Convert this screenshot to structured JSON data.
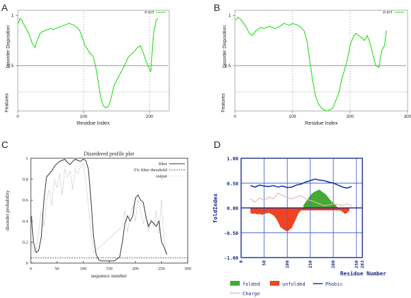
{
  "panels": {
    "A": {
      "letter": "A",
      "chart_data": {
        "type": "line",
        "legend": "P-FIT",
        "xlabel": "Residue Index",
        "ylabel": "Disorder Disposition",
        "features_label": "Features",
        "xlim": [
          0,
          230
        ],
        "ylim": [
          0.05,
          1.05
        ],
        "xticks": [
          "0",
          "100",
          "200"
        ],
        "yticks": [
          "1",
          "0.5"
        ],
        "ytick_values": [
          1,
          0.5
        ],
        "threshold": 0.5,
        "vlines": [
          100,
          200
        ],
        "series": [
          {
            "name": "P-FIT",
            "color": "#22dd11",
            "x": [
              1,
              3,
              6,
              10,
              14,
              18,
              22,
              26,
              30,
              34,
              38,
              42,
              46,
              50,
              54,
              58,
              62,
              66,
              70,
              74,
              78,
              82,
              86,
              90,
              94,
              98,
              102,
              106,
              110,
              114,
              118,
              122,
              126,
              130,
              134,
              138,
              142,
              146,
              150,
              154,
              158,
              162,
              166,
              170,
              174,
              178,
              182,
              186,
              190,
              194,
              198,
              202,
              206,
              210,
              213
            ],
            "y": [
              0.92,
              0.97,
              0.95,
              0.9,
              0.85,
              0.8,
              0.72,
              0.68,
              0.76,
              0.82,
              0.84,
              0.85,
              0.86,
              0.87,
              0.86,
              0.87,
              0.88,
              0.89,
              0.9,
              0.91,
              0.92,
              0.91,
              0.9,
              0.88,
              0.85,
              0.78,
              0.7,
              0.66,
              0.62,
              0.6,
              0.5,
              0.35,
              0.18,
              0.1,
              0.08,
              0.1,
              0.18,
              0.3,
              0.35,
              0.4,
              0.45,
              0.5,
              0.56,
              0.6,
              0.62,
              0.65,
              0.68,
              0.7,
              0.64,
              0.56,
              0.5,
              0.44,
              0.8,
              0.95,
              0.97
            ]
          }
        ]
      }
    },
    "B": {
      "letter": "B",
      "chart_data": {
        "type": "line",
        "legend": "P-FIT",
        "xlabel": "Residue Index",
        "ylabel": "Disorder Disposition",
        "features_label": "Features",
        "xlim": [
          0,
          300
        ],
        "ylim": [
          0.05,
          1.05
        ],
        "xticks": [
          "0",
          "100",
          "200",
          "300"
        ],
        "yticks": [
          "1",
          "0.5"
        ],
        "ytick_values": [
          1,
          0.5
        ],
        "threshold": 0.5,
        "vlines": [
          100,
          200
        ],
        "series": [
          {
            "name": "P-FIT",
            "color": "#22dd11",
            "x": [
              1,
              5,
              10,
              15,
              20,
              25,
              30,
              35,
              40,
              45,
              50,
              55,
              60,
              65,
              70,
              75,
              80,
              85,
              90,
              95,
              100,
              105,
              110,
              115,
              120,
              125,
              130,
              135,
              140,
              145,
              150,
              155,
              160,
              165,
              170,
              175,
              180,
              185,
              190,
              195,
              200,
              205,
              210,
              215,
              220,
              225,
              230,
              235,
              240,
              245,
              250,
              255,
              260,
              263
            ],
            "y": [
              0.95,
              0.98,
              0.96,
              0.92,
              0.88,
              0.82,
              0.8,
              0.84,
              0.86,
              0.88,
              0.87,
              0.88,
              0.89,
              0.88,
              0.87,
              0.88,
              0.9,
              0.92,
              0.91,
              0.9,
              0.92,
              0.91,
              0.9,
              0.88,
              0.85,
              0.75,
              0.55,
              0.35,
              0.2,
              0.12,
              0.08,
              0.06,
              0.05,
              0.06,
              0.08,
              0.15,
              0.22,
              0.35,
              0.45,
              0.55,
              0.7,
              0.78,
              0.82,
              0.8,
              0.78,
              0.75,
              0.8,
              0.72,
              0.6,
              0.5,
              0.48,
              0.65,
              0.7,
              0.85
            ]
          }
        ]
      }
    },
    "C": {
      "letter": "C",
      "chart_data": {
        "type": "line",
        "title": "Disordered profile plot",
        "xlabel": "sequence number",
        "ylabel": "disorder probability",
        "xlim": [
          0,
          300
        ],
        "ylim": [
          0,
          1
        ],
        "xticks": [
          "0",
          "50",
          "100",
          "150",
          "200",
          "250",
          "300"
        ],
        "xtick_values": [
          0,
          50,
          100,
          150,
          200,
          250,
          300
        ],
        "yticks": [
          "0",
          "0.2",
          "0.4",
          "0.6",
          "0.8",
          "1"
        ],
        "ytick_values": [
          0,
          0.2,
          0.4,
          0.6,
          0.8,
          1
        ],
        "threshold": 0.05,
        "legend": [
          "filter",
          "5% filter threshold",
          "output"
        ],
        "series": [
          {
            "name": "filter",
            "color": "#333333",
            "x": [
              1,
              5,
              10,
              15,
              20,
              25,
              30,
              35,
              40,
              45,
              50,
              55,
              60,
              65,
              70,
              75,
              80,
              85,
              90,
              95,
              100,
              105,
              110,
              115,
              120,
              125,
              130,
              135,
              140,
              150,
              160,
              170,
              175,
              180,
              185,
              190,
              195,
              200,
              205,
              210,
              215,
              220,
              225,
              230,
              235,
              240,
              245,
              250,
              255,
              260
            ],
            "y": [
              0.45,
              0.2,
              0.1,
              0.12,
              0.25,
              0.6,
              0.82,
              0.85,
              0.88,
              0.92,
              0.95,
              0.97,
              0.98,
              0.99,
              0.96,
              0.94,
              0.97,
              0.99,
              0.98,
              0.97,
              0.99,
              0.98,
              0.9,
              0.6,
              0.25,
              0.08,
              0.03,
              0.02,
              0.02,
              0.02,
              0.02,
              0.06,
              0.2,
              0.38,
              0.45,
              0.4,
              0.45,
              0.62,
              0.65,
              0.6,
              0.58,
              0.45,
              0.35,
              0.4,
              0.38,
              0.35,
              0.4,
              0.2,
              0.15,
              0.08
            ]
          },
          {
            "name": "output",
            "color": "#bbbbbb",
            "x": [
              1,
              5,
              10,
              15,
              20,
              25,
              30,
              35,
              40,
              45,
              50,
              55,
              60,
              65,
              70,
              75,
              80,
              85,
              90,
              95,
              100,
              105,
              110,
              115,
              120,
              175,
              180,
              185,
              190,
              195,
              200,
              205,
              210,
              215,
              220,
              225,
              230,
              235,
              240,
              245,
              250,
              255,
              260
            ],
            "y": [
              0.2,
              0.1,
              0.15,
              0.3,
              0.5,
              0.35,
              0.6,
              0.7,
              0.55,
              0.8,
              0.72,
              0.85,
              0.65,
              0.9,
              0.82,
              0.88,
              0.7,
              0.9,
              0.85,
              0.92,
              0.95,
              0.8,
              0.55,
              0.3,
              0.1,
              0.35,
              0.5,
              0.3,
              0.45,
              0.55,
              0.4,
              0.6,
              0.5,
              0.38,
              0.45,
              0.3,
              0.42,
              0.35,
              0.5,
              0.28,
              0.6,
              0.2,
              0.1
            ]
          }
        ]
      }
    },
    "D": {
      "letter": "D",
      "chart_data": {
        "type": "area",
        "xlabel": "Residue Number",
        "ylabel": "foldIndex",
        "xlim": [
          0,
          263
        ],
        "ylim": [
          -1,
          1
        ],
        "xticks": [
          "0",
          "50",
          "100",
          "150",
          "200",
          "250",
          "263"
        ],
        "xtick_values": [
          0,
          50,
          100,
          150,
          200,
          250,
          263
        ],
        "yticks": [
          "1.00",
          "0.50",
          "0.00",
          "-0.50",
          "-1.00"
        ],
        "ytick_values": [
          1,
          0.5,
          0,
          -0.5,
          -1
        ],
        "legend": [
          "folded",
          "unfolded",
          "Phobic",
          "Charge"
        ],
        "colors": {
          "folded": "#44aa33",
          "unfolded": "#ee4422",
          "phobic": "#1133aa",
          "charge": "#f0b0b8",
          "grid": "#4466cc",
          "axis": "#1a2a88"
        },
        "foldindex": {
          "x": [
            20,
            25,
            30,
            35,
            40,
            45,
            50,
            55,
            60,
            65,
            70,
            75,
            80,
            85,
            90,
            95,
            100,
            105,
            110,
            115,
            120,
            125,
            130,
            135,
            140,
            145,
            150,
            155,
            160,
            165,
            170,
            175,
            180,
            185,
            190,
            195,
            200,
            205,
            210,
            215,
            220,
            225,
            230,
            235
          ],
          "y": [
            -0.1,
            -0.12,
            -0.11,
            -0.13,
            -0.12,
            -0.14,
            -0.12,
            -0.11,
            -0.1,
            -0.12,
            -0.15,
            -0.2,
            -0.28,
            -0.38,
            -0.42,
            -0.45,
            -0.48,
            -0.44,
            -0.4,
            -0.3,
            -0.2,
            -0.1,
            -0.05,
            0.05,
            0.12,
            0.18,
            0.25,
            0.3,
            0.33,
            0.35,
            0.37,
            0.33,
            0.3,
            0.26,
            0.2,
            0.14,
            0.1,
            0.06,
            0.0,
            -0.05,
            -0.08,
            -0.12,
            -0.1,
            -0.05
          ]
        },
        "phobic": {
          "x": [
            20,
            30,
            40,
            50,
            60,
            70,
            80,
            90,
            100,
            110,
            120,
            130,
            140,
            150,
            160,
            170,
            180,
            190,
            200,
            210,
            220,
            230,
            240
          ],
          "y": [
            0.45,
            0.42,
            0.46,
            0.44,
            0.43,
            0.45,
            0.42,
            0.44,
            0.41,
            0.42,
            0.46,
            0.48,
            0.52,
            0.55,
            0.58,
            0.56,
            0.55,
            0.52,
            0.5,
            0.46,
            0.42,
            0.4,
            0.43
          ]
        },
        "charge": {
          "x": [
            20,
            30,
            40,
            50,
            60,
            70,
            80,
            90,
            100,
            110,
            120,
            130,
            140,
            150,
            160,
            170,
            180,
            190,
            200,
            210,
            220,
            230,
            240
          ],
          "y": [
            0.18,
            0.12,
            0.2,
            0.15,
            0.22,
            0.18,
            0.3,
            0.25,
            0.2,
            0.18,
            0.22,
            0.25,
            0.18,
            0.15,
            0.12,
            0.08,
            0.05,
            0.06,
            0.08,
            0.07,
            0.05,
            0.08,
            0.04
          ]
        }
      }
    }
  }
}
